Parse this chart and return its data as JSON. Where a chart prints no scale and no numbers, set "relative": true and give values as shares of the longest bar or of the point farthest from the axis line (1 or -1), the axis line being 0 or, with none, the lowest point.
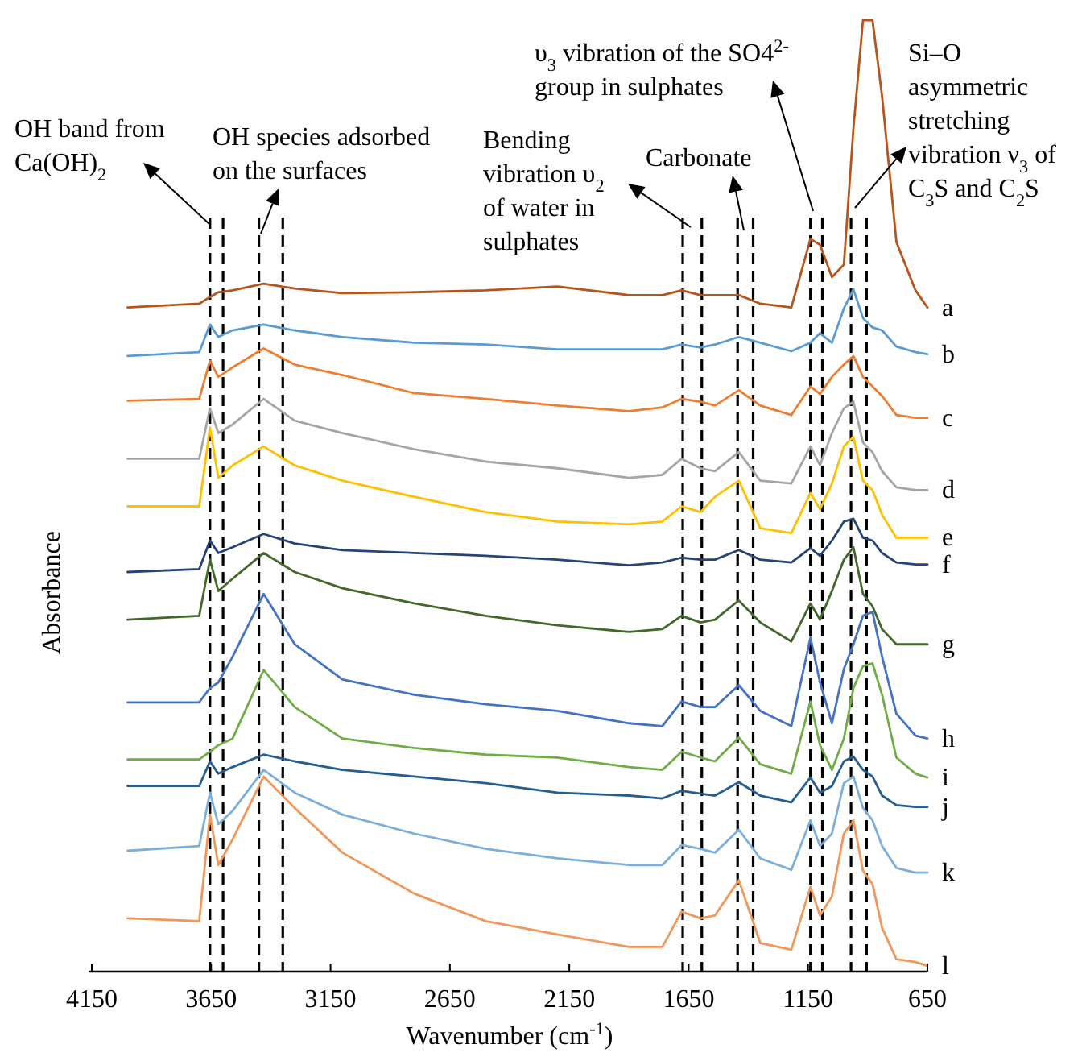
{
  "chart_data": {
    "type": "line",
    "relative": true,
    "xlabel": "Wavenumber (cm$^{-1}$)",
    "ylabel": "Absorbance",
    "xlim": [
      4150,
      650
    ],
    "xticks": [
      4150,
      3650,
      3150,
      2650,
      2150,
      1650,
      1150,
      650
    ],
    "tick_labels": "x",
    "grid": false,
    "marker": "none",
    "line_style": "solid",
    "x": [
      4000,
      3700,
      3655,
      3620,
      3560,
      3430,
      3300,
      3100,
      2800,
      2500,
      2200,
      1900,
      1760,
      1680,
      1600,
      1540,
      1440,
      1350,
      1220,
      1140,
      1100,
      1050,
      1000,
      960,
      920,
      880,
      840,
      780,
      700,
      650
    ],
    "series": [
      {
        "name": "a",
        "color": "#b5541c",
        "values": [
          0.698,
          0.702,
          0.709,
          0.714,
          0.716,
          0.723,
          0.718,
          0.713,
          0.714,
          0.716,
          0.72,
          0.711,
          0.711,
          0.716,
          0.711,
          0.711,
          0.711,
          0.702,
          0.698,
          0.77,
          0.764,
          0.73,
          0.743,
          0.886,
          1.0,
          1.0,
          0.92,
          0.767,
          0.716,
          0.698
        ]
      },
      {
        "name": "b",
        "color": "#5b9bd5",
        "values": [
          0.647,
          0.651,
          0.68,
          0.667,
          0.674,
          0.68,
          0.674,
          0.667,
          0.661,
          0.659,
          0.654,
          0.654,
          0.654,
          0.659,
          0.656,
          0.659,
          0.667,
          0.661,
          0.652,
          0.661,
          0.671,
          0.661,
          0.697,
          0.717,
          0.687,
          0.677,
          0.674,
          0.657,
          0.651,
          0.649
        ]
      },
      {
        "name": "c",
        "color": "#ed7d31",
        "values": [
          0.6,
          0.602,
          0.642,
          0.625,
          0.635,
          0.655,
          0.638,
          0.627,
          0.608,
          0.602,
          0.595,
          0.589,
          0.593,
          0.602,
          0.599,
          0.595,
          0.611,
          0.595,
          0.585,
          0.615,
          0.607,
          0.625,
          0.638,
          0.647,
          0.625,
          0.615,
          0.605,
          0.585,
          0.582,
          0.582
        ]
      },
      {
        "name": "d",
        "color": "#a5a5a5",
        "values": [
          0.539,
          0.539,
          0.592,
          0.566,
          0.575,
          0.602,
          0.579,
          0.566,
          0.549,
          0.536,
          0.529,
          0.519,
          0.522,
          0.539,
          0.529,
          0.526,
          0.546,
          0.516,
          0.513,
          0.552,
          0.532,
          0.566,
          0.592,
          0.599,
          0.556,
          0.546,
          0.526,
          0.509,
          0.506,
          0.506
        ]
      },
      {
        "name": "e",
        "color": "#ffc000",
        "values": [
          0.489,
          0.489,
          0.572,
          0.519,
          0.532,
          0.552,
          0.532,
          0.516,
          0.499,
          0.483,
          0.473,
          0.47,
          0.473,
          0.489,
          0.483,
          0.499,
          0.516,
          0.466,
          0.461,
          0.503,
          0.486,
          0.513,
          0.552,
          0.562,
          0.516,
          0.506,
          0.48,
          0.456,
          0.456,
          0.456
        ]
      },
      {
        "name": "f",
        "color": "#264478",
        "values": [
          0.42,
          0.423,
          0.453,
          0.44,
          0.446,
          0.46,
          0.45,
          0.443,
          0.44,
          0.437,
          0.433,
          0.427,
          0.43,
          0.435,
          0.433,
          0.433,
          0.443,
          0.433,
          0.43,
          0.445,
          0.437,
          0.453,
          0.473,
          0.476,
          0.456,
          0.453,
          0.44,
          0.43,
          0.428,
          0.428
        ]
      },
      {
        "name": "g",
        "color": "#43682b",
        "values": [
          0.37,
          0.374,
          0.433,
          0.4,
          0.413,
          0.44,
          0.42,
          0.403,
          0.387,
          0.374,
          0.364,
          0.357,
          0.36,
          0.374,
          0.367,
          0.37,
          0.39,
          0.367,
          0.347,
          0.387,
          0.37,
          0.4,
          0.433,
          0.446,
          0.397,
          0.384,
          0.36,
          0.344,
          0.344,
          0.344
        ]
      },
      {
        "name": "h",
        "color": "#4472c4",
        "values": [
          0.283,
          0.283,
          0.298,
          0.304,
          0.331,
          0.397,
          0.344,
          0.307,
          0.291,
          0.281,
          0.274,
          0.261,
          0.258,
          0.284,
          0.278,
          0.278,
          0.301,
          0.274,
          0.258,
          0.351,
          0.304,
          0.261,
          0.318,
          0.344,
          0.374,
          0.378,
          0.331,
          0.271,
          0.248,
          0.245
        ]
      },
      {
        "name": "i",
        "color": "#70ad47",
        "values": [
          0.223,
          0.223,
          0.231,
          0.238,
          0.245,
          0.317,
          0.278,
          0.245,
          0.235,
          0.228,
          0.225,
          0.215,
          0.212,
          0.231,
          0.225,
          0.221,
          0.246,
          0.218,
          0.208,
          0.284,
          0.238,
          0.212,
          0.245,
          0.298,
          0.321,
          0.324,
          0.291,
          0.225,
          0.208,
          0.204
        ]
      },
      {
        "name": "j",
        "color": "#255e91",
        "values": [
          0.195,
          0.195,
          0.221,
          0.208,
          0.215,
          0.228,
          0.221,
          0.212,
          0.205,
          0.198,
          0.188,
          0.185,
          0.182,
          0.19,
          0.187,
          0.185,
          0.199,
          0.185,
          0.178,
          0.204,
          0.188,
          0.195,
          0.221,
          0.226,
          0.212,
          0.205,
          0.185,
          0.175,
          0.173,
          0.173
        ]
      },
      {
        "name": "k",
        "color": "#7cafdd",
        "values": [
          0.127,
          0.132,
          0.188,
          0.155,
          0.169,
          0.212,
          0.188,
          0.165,
          0.145,
          0.129,
          0.119,
          0.112,
          0.112,
          0.133,
          0.129,
          0.125,
          0.149,
          0.119,
          0.107,
          0.159,
          0.132,
          0.145,
          0.198,
          0.205,
          0.172,
          0.159,
          0.132,
          0.109,
          0.104,
          0.104
        ]
      },
      {
        "name": "l",
        "color": "#f1975a",
        "values": [
          0.056,
          0.053,
          0.165,
          0.112,
          0.139,
          0.205,
          0.172,
          0.125,
          0.082,
          0.053,
          0.039,
          0.026,
          0.026,
          0.063,
          0.056,
          0.059,
          0.096,
          0.03,
          0.023,
          0.089,
          0.059,
          0.079,
          0.145,
          0.159,
          0.106,
          0.092,
          0.046,
          0.013,
          0.01,
          0.006
        ]
      }
    ],
    "ref_lines": [
      {
        "axis": "x",
        "value": 3655,
        "line_style": "dashed",
        "color": "#000000"
      },
      {
        "axis": "x",
        "value": 3600,
        "line_style": "dashed",
        "color": "#000000"
      },
      {
        "axis": "x",
        "value": 3450,
        "line_style": "dashed",
        "color": "#000000"
      },
      {
        "axis": "x",
        "value": 3350,
        "line_style": "dashed",
        "color": "#000000"
      },
      {
        "axis": "x",
        "value": 1675,
        "line_style": "dashed",
        "color": "#000000"
      },
      {
        "axis": "x",
        "value": 1595,
        "line_style": "dashed",
        "color": "#000000"
      },
      {
        "axis": "x",
        "value": 1445,
        "line_style": "dashed",
        "color": "#000000"
      },
      {
        "axis": "x",
        "value": 1380,
        "line_style": "dashed",
        "color": "#000000"
      },
      {
        "axis": "x",
        "value": 1140,
        "line_style": "dashed",
        "color": "#000000"
      },
      {
        "axis": "x",
        "value": 1090,
        "line_style": "dashed",
        "color": "#000000"
      },
      {
        "axis": "x",
        "value": 970,
        "line_style": "dashed",
        "color": "#000000"
      },
      {
        "axis": "x",
        "value": 905,
        "line_style": "dashed",
        "color": "#000000"
      }
    ],
    "annotations": [
      "OH band from Ca(OH)$_{2}$",
      "OH species adsorbed on the surfaces",
      "Bending vibration υ$_{2}$ of water in sulphates",
      "Carbonate",
      "υ$_{3}$ vibration of the SO4$^{2-}$ group in sulphates",
      "Si–O asymmetric stretching vibration ν$_{3}$ of C$_{3}$S and C$_{2}$S"
    ]
  }
}
